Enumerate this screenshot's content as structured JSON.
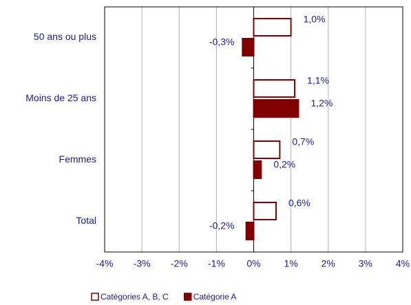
{
  "chart_data": {
    "type": "hbar",
    "categories": [
      "50 ans ou plus",
      "Moins de 25 ans",
      "Femmes",
      "Total"
    ],
    "series": [
      {
        "name": "Catégories A, B, C",
        "color": "#800000",
        "fill": "#ffffff",
        "values": [
          1.0,
          1.1,
          0.7,
          0.6
        ],
        "value_labels": [
          "1,0%",
          "1,1%",
          "0,7%",
          "0,6%"
        ]
      },
      {
        "name": "Catégorie A",
        "color": "#800000",
        "fill": "#800000",
        "values": [
          -0.3,
          1.2,
          0.2,
          -0.2
        ],
        "value_labels": [
          "-0,3%",
          "1,2%",
          "0,2%",
          "-0,2%"
        ]
      }
    ],
    "xlim": [
      -4,
      4
    ],
    "xticks": [
      {
        "value": -4,
        "label": "-4%"
      },
      {
        "value": -3,
        "label": "-3%"
      },
      {
        "value": -2,
        "label": "-2%"
      },
      {
        "value": -1,
        "label": "-1%"
      },
      {
        "value": 0,
        "label": "0%"
      },
      {
        "value": 1,
        "label": "1%"
      },
      {
        "value": 2,
        "label": "2%"
      },
      {
        "value": 3,
        "label": "3%"
      },
      {
        "value": 4,
        "label": "4%"
      }
    ],
    "grid": true,
    "legend": "bottom"
  }
}
